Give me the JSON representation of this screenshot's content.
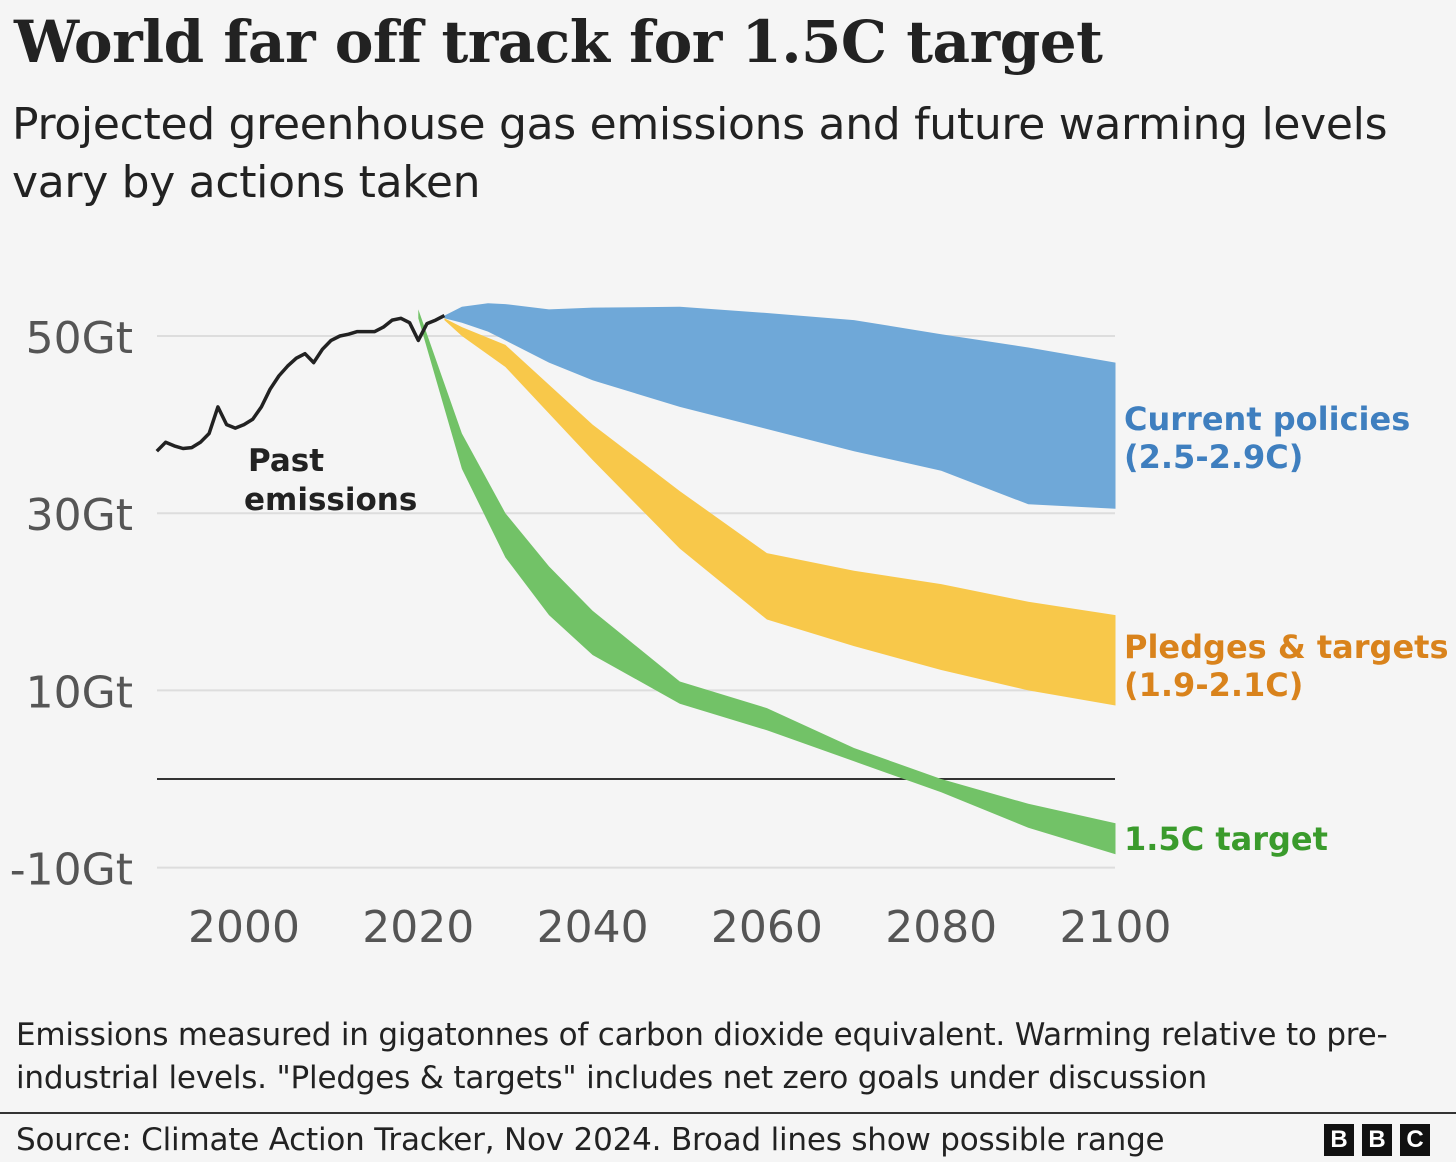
{
  "header": {
    "title": "World far off track for 1.5C target",
    "subtitle": "Projected greenhouse gas emissions and future warming levels vary by actions taken"
  },
  "footer": {
    "note": "Emissions measured in gigatonnes of carbon dioxide equivalent. Warming relative to pre-industrial levels. \"Pledges & targets\" includes net zero goals under discussion",
    "source": "Source: Climate Action Tracker, Nov 2024. Broad lines show possible range",
    "logo_letters": [
      "B",
      "B",
      "C"
    ]
  },
  "colors": {
    "current": "#6fa8d8",
    "current_text": "#3f7fbf",
    "pledges": "#f8c84a",
    "pledges_text": "#d9831c",
    "target": "#72c267",
    "target_text": "#3a9b2c",
    "past": "#222222",
    "grid": "#dddddd",
    "zero": "#333333"
  },
  "chart_data": {
    "type": "area",
    "title": "World far off track for 1.5C target",
    "ylabel": "",
    "xlabel": "",
    "xlim": [
      1990,
      2100
    ],
    "ylim": [
      -12,
      53
    ],
    "yticks": [
      {
        "value": 50,
        "label": "50Gt"
      },
      {
        "value": 30,
        "label": "30Gt"
      },
      {
        "value": 10,
        "label": "10Gt"
      },
      {
        "value": -10,
        "label": "-10Gt"
      }
    ],
    "xticks": [
      {
        "value": 2000,
        "label": "2000"
      },
      {
        "value": 2020,
        "label": "2020"
      },
      {
        "value": 2040,
        "label": "2040"
      },
      {
        "value": 2060,
        "label": "2060"
      },
      {
        "value": 2080,
        "label": "2080"
      },
      {
        "value": 2100,
        "label": "2100"
      }
    ],
    "past": {
      "label": [
        "Past",
        "emissions"
      ],
      "x": [
        1990,
        1991,
        1992,
        1993,
        1994,
        1995,
        1996,
        1997,
        1998,
        1999,
        2000,
        2001,
        2002,
        2003,
        2004,
        2005,
        2006,
        2007,
        2008,
        2009,
        2010,
        2011,
        2012,
        2013,
        2014,
        2015,
        2016,
        2017,
        2018,
        2019,
        2020,
        2021,
        2022,
        2023
      ],
      "y": [
        37.0,
        38.0,
        37.6,
        37.3,
        37.4,
        38.0,
        39.0,
        42.0,
        40.0,
        39.6,
        40.0,
        40.6,
        42.0,
        44.0,
        45.5,
        46.6,
        47.5,
        48.0,
        47.0,
        48.5,
        49.5,
        50.0,
        50.2,
        50.5,
        50.5,
        50.5,
        51.0,
        51.8,
        52.0,
        51.5,
        49.5,
        51.4,
        51.8,
        52.3
      ]
    },
    "series": [
      {
        "name": "Current policies",
        "label": [
          "Current policies",
          "(2.5-2.9C)"
        ],
        "x": [
          2023,
          2025,
          2028,
          2030,
          2035,
          2040,
          2050,
          2060,
          2070,
          2080,
          2090,
          2100
        ],
        "upper": [
          52.3,
          53.3,
          53.7,
          53.6,
          53.0,
          53.2,
          53.3,
          52.6,
          51.8,
          50.2,
          48.7,
          47.0
        ],
        "lower": [
          52.0,
          51.5,
          50.5,
          49.5,
          47.0,
          45.0,
          42.0,
          39.5,
          37.0,
          34.8,
          31.0,
          30.5
        ]
      },
      {
        "name": "Pledges & targets",
        "label": [
          "Pledges & targets",
          "(1.9-2.1C)"
        ],
        "x": [
          2023,
          2025,
          2030,
          2040,
          2050,
          2060,
          2070,
          2080,
          2090,
          2100
        ],
        "upper": [
          52.0,
          51.0,
          49.0,
          40.0,
          32.5,
          25.5,
          23.5,
          22.0,
          20.0,
          18.5
        ],
        "lower": [
          51.8,
          50.0,
          46.5,
          36.0,
          26.0,
          18.0,
          15.0,
          12.3,
          10.0,
          8.3
        ]
      },
      {
        "name": "1.5C target",
        "label": [
          "1.5C target"
        ],
        "x": [
          2020,
          2025,
          2030,
          2035,
          2040,
          2050,
          2060,
          2070,
          2080,
          2090,
          2100
        ],
        "upper": [
          53.0,
          39.0,
          30.0,
          24.0,
          19.0,
          11.0,
          8.0,
          3.5,
          0.0,
          -2.8,
          -5.0
        ],
        "lower": [
          52.0,
          35.0,
          25.0,
          18.5,
          14.0,
          8.5,
          5.5,
          2.0,
          -1.5,
          -5.5,
          -8.5
        ]
      }
    ]
  }
}
